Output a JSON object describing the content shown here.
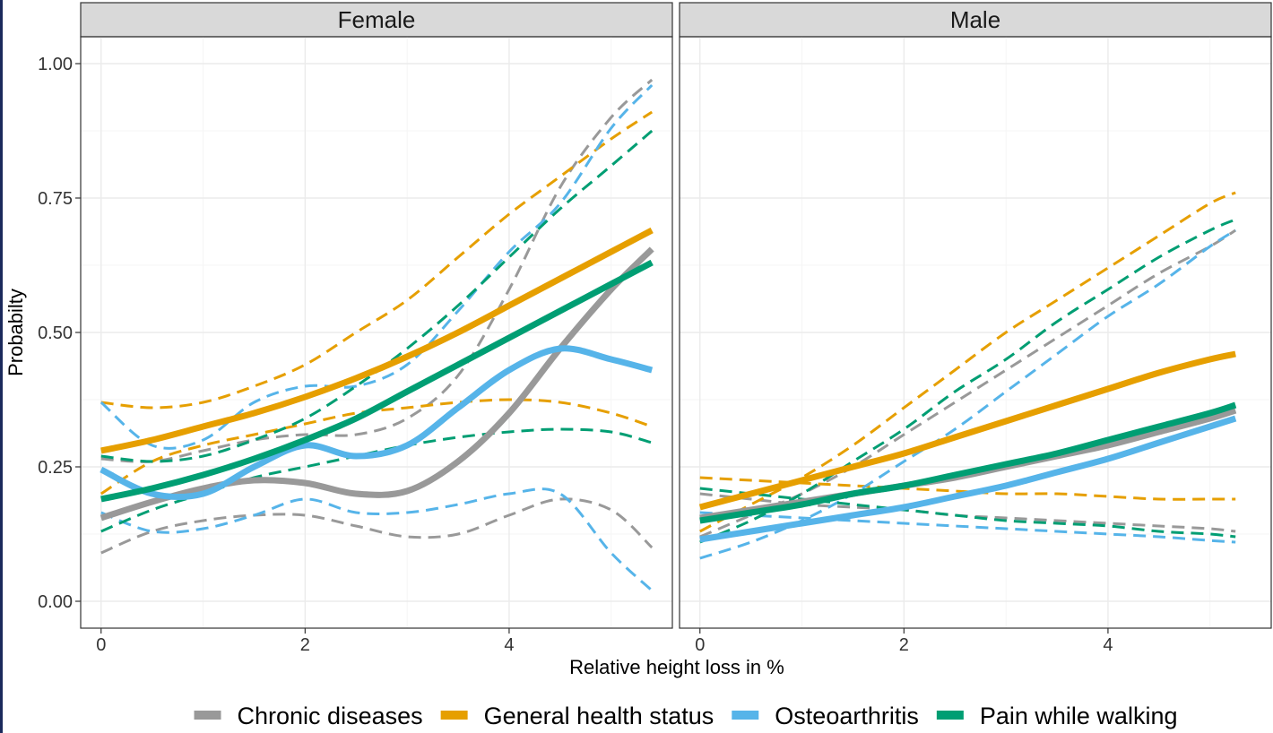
{
  "chart_data": {
    "type": "line",
    "facet_labels": [
      "Female",
      "Male"
    ],
    "xlabel": "Relative height loss in %",
    "ylabel": "Probabilty",
    "xlim": [
      -0.2,
      5.6
    ],
    "ylim": [
      -0.05,
      1.05
    ],
    "x_ticks": [
      0,
      2,
      4
    ],
    "x_tick_labels": [
      "0",
      "2",
      "4"
    ],
    "y_ticks": [
      0,
      0.25,
      0.5,
      0.75,
      1.0
    ],
    "y_tick_labels": [
      "0.00",
      "0.25",
      "0.50",
      "0.75",
      "1.00"
    ],
    "grid": true,
    "legend_position": "bottom",
    "line_styles": {
      "estimate": "solid",
      "confidence_band": "dashed"
    },
    "series": [
      {
        "name": "Chronic diseases",
        "color": "#999999"
      },
      {
        "name": "General health status",
        "color": "#E69F00"
      },
      {
        "name": "Osteoarthritis",
        "color": "#56B4E9"
      },
      {
        "name": "Pain while walking",
        "color": "#009E73"
      }
    ],
    "panels": [
      {
        "facet": "Female",
        "x": [
          0,
          0.5,
          1,
          1.5,
          2,
          2.5,
          3,
          3.5,
          4,
          4.5,
          5,
          5.4
        ],
        "lines": [
          {
            "series": "Chronic diseases",
            "kind": "estimate",
            "y": [
              0.155,
              0.185,
              0.21,
              0.225,
              0.22,
              0.2,
              0.205,
              0.26,
              0.35,
              0.47,
              0.58,
              0.655
            ]
          },
          {
            "series": "Chronic diseases",
            "kind": "upper",
            "y": [
              0.265,
              0.26,
              0.28,
              0.3,
              0.31,
              0.31,
              0.34,
              0.42,
              0.58,
              0.77,
              0.9,
              0.97
            ]
          },
          {
            "series": "Chronic diseases",
            "kind": "lower",
            "y": [
              0.09,
              0.13,
              0.15,
              0.16,
              0.16,
              0.14,
              0.12,
              0.125,
              0.16,
              0.19,
              0.17,
              0.1
            ]
          },
          {
            "series": "General health status",
            "kind": "estimate",
            "y": [
              0.28,
              0.3,
              0.325,
              0.35,
              0.38,
              0.415,
              0.455,
              0.5,
              0.55,
              0.6,
              0.65,
              0.69
            ]
          },
          {
            "series": "General health status",
            "kind": "upper",
            "y": [
              0.37,
              0.36,
              0.37,
              0.4,
              0.44,
              0.5,
              0.56,
              0.64,
              0.72,
              0.79,
              0.86,
              0.91
            ]
          },
          {
            "series": "General health status",
            "kind": "lower",
            "y": [
              0.2,
              0.26,
              0.29,
              0.31,
              0.33,
              0.35,
              0.36,
              0.37,
              0.375,
              0.37,
              0.35,
              0.325
            ]
          },
          {
            "series": "Osteoarthritis",
            "kind": "estimate",
            "y": [
              0.245,
              0.2,
              0.2,
              0.25,
              0.29,
              0.27,
              0.29,
              0.36,
              0.43,
              0.47,
              0.45,
              0.43
            ]
          },
          {
            "series": "Osteoarthritis",
            "kind": "upper",
            "y": [
              0.37,
              0.29,
              0.3,
              0.37,
              0.4,
              0.4,
              0.44,
              0.54,
              0.65,
              0.74,
              0.88,
              0.96
            ]
          },
          {
            "series": "Osteoarthritis",
            "kind": "lower",
            "y": [
              0.165,
              0.13,
              0.135,
              0.16,
              0.19,
              0.165,
              0.165,
              0.18,
              0.2,
              0.2,
              0.09,
              0.02
            ]
          },
          {
            "series": "Pain while walking",
            "kind": "estimate",
            "y": [
              0.19,
              0.21,
              0.235,
              0.265,
              0.3,
              0.34,
              0.39,
              0.44,
              0.49,
              0.54,
              0.59,
              0.63
            ]
          },
          {
            "series": "Pain while walking",
            "kind": "upper",
            "y": [
              0.27,
              0.26,
              0.27,
              0.3,
              0.34,
              0.4,
              0.47,
              0.55,
              0.64,
              0.73,
              0.81,
              0.875
            ]
          },
          {
            "series": "Pain while walking",
            "kind": "lower",
            "y": [
              0.13,
              0.17,
              0.2,
              0.23,
              0.25,
              0.27,
              0.29,
              0.305,
              0.315,
              0.32,
              0.315,
              0.295
            ]
          }
        ]
      },
      {
        "facet": "Male",
        "x": [
          0,
          0.5,
          1,
          1.5,
          2,
          2.5,
          3,
          3.5,
          4,
          4.5,
          5,
          5.25
        ],
        "lines": [
          {
            "series": "Chronic diseases",
            "kind": "estimate",
            "y": [
              0.155,
              0.17,
              0.185,
              0.2,
              0.215,
              0.23,
              0.25,
              0.27,
              0.29,
              0.315,
              0.34,
              0.355
            ]
          },
          {
            "series": "Chronic diseases",
            "kind": "upper",
            "y": [
              0.12,
              0.16,
              0.2,
              0.25,
              0.31,
              0.37,
              0.43,
              0.49,
              0.55,
              0.61,
              0.66,
              0.69
            ]
          },
          {
            "series": "Chronic diseases",
            "kind": "lower",
            "y": [
              0.2,
              0.19,
              0.18,
              0.175,
              0.17,
              0.16,
              0.155,
              0.15,
              0.145,
              0.14,
              0.135,
              0.13
            ]
          },
          {
            "series": "General health status",
            "kind": "estimate",
            "y": [
              0.175,
              0.2,
              0.225,
              0.25,
              0.275,
              0.305,
              0.335,
              0.365,
              0.395,
              0.425,
              0.45,
              0.46
            ]
          },
          {
            "series": "General health status",
            "kind": "upper",
            "y": [
              0.13,
              0.18,
              0.23,
              0.29,
              0.36,
              0.43,
              0.5,
              0.56,
              0.62,
              0.68,
              0.74,
              0.76
            ]
          },
          {
            "series": "General health status",
            "kind": "lower",
            "y": [
              0.23,
              0.225,
              0.22,
              0.215,
              0.21,
              0.205,
              0.2,
              0.2,
              0.195,
              0.19,
              0.19,
              0.19
            ]
          },
          {
            "series": "Osteoarthritis",
            "kind": "estimate",
            "y": [
              0.115,
              0.13,
              0.145,
              0.16,
              0.175,
              0.195,
              0.215,
              0.24,
              0.265,
              0.295,
              0.325,
              0.34
            ]
          },
          {
            "series": "Osteoarthritis",
            "kind": "upper",
            "y": [
              0.08,
              0.11,
              0.15,
              0.2,
              0.26,
              0.32,
              0.39,
              0.46,
              0.53,
              0.59,
              0.66,
              0.69
            ]
          },
          {
            "series": "Osteoarthritis",
            "kind": "lower",
            "y": [
              0.165,
              0.16,
              0.155,
              0.15,
              0.145,
              0.14,
              0.135,
              0.13,
              0.125,
              0.12,
              0.113,
              0.11
            ]
          },
          {
            "series": "Pain while walking",
            "kind": "estimate",
            "y": [
              0.15,
              0.165,
              0.18,
              0.2,
              0.215,
              0.235,
              0.255,
              0.275,
              0.3,
              0.325,
              0.35,
              0.365
            ]
          },
          {
            "series": "Pain while walking",
            "kind": "upper",
            "y": [
              0.11,
              0.15,
              0.2,
              0.26,
              0.32,
              0.39,
              0.45,
              0.52,
              0.58,
              0.64,
              0.69,
              0.71
            ]
          },
          {
            "series": "Pain while walking",
            "kind": "lower",
            "y": [
              0.21,
              0.2,
              0.19,
              0.18,
              0.17,
              0.16,
              0.15,
              0.145,
              0.14,
              0.13,
              0.125,
              0.12
            ]
          }
        ]
      }
    ]
  }
}
